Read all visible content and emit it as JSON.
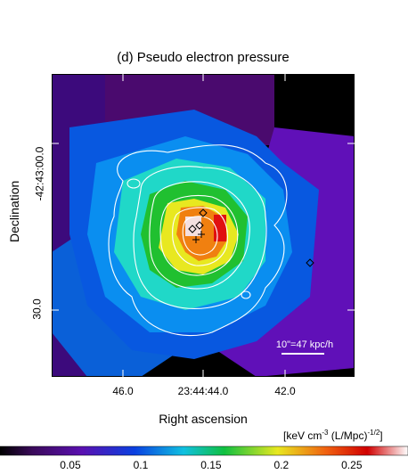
{
  "title": "(d) Pseudo electron pressure",
  "xlabel": "Right ascension",
  "ylabel": "Declination",
  "scale_bar_label": "10\"=47 kpc/h",
  "colorbar": {
    "unit_prefix": "[keV cm",
    "unit_exp1": "-3",
    "unit_mid": " (L/Mpc)",
    "unit_exp2": "-1/2",
    "unit_suffix": "]",
    "ticks": [
      "0.05",
      "0.1",
      "0.15",
      "0.2",
      "0.25"
    ],
    "range": [
      0.0,
      0.29
    ]
  },
  "chart_data": {
    "type": "heatmap",
    "title": "(d) Pseudo electron pressure",
    "xlabel": "Right ascension",
    "ylabel": "Declination",
    "x_ticks": [
      "46.0",
      "23:44:44.0",
      "42.0"
    ],
    "y_ticks": [
      "-42:43:00.0",
      "30.0"
    ],
    "colormap": "rainbow (black-purple-blue-cyan-green-yellow-red-white)",
    "colorbar_ticks": [
      0.05,
      0.1,
      0.15,
      0.2,
      0.25
    ],
    "regions": [
      {
        "name": "outer-nw",
        "value": 0.03
      },
      {
        "name": "outer-w",
        "value": 0.04
      },
      {
        "name": "outer-sw",
        "value": 0.07
      },
      {
        "name": "outer-se",
        "value": 0.05
      },
      {
        "name": "outer-ne",
        "value": 0.0
      },
      {
        "name": "ring-1",
        "value": 0.09
      },
      {
        "name": "ring-2",
        "value": 0.12
      },
      {
        "name": "ring-3",
        "value": 0.14
      },
      {
        "name": "ring-4",
        "value": 0.17
      },
      {
        "name": "ring-5",
        "value": 0.2
      },
      {
        "name": "core",
        "value": 0.26
      }
    ],
    "grid": false
  },
  "colors": {
    "frame": "#000000",
    "contours": "#ffffff",
    "background": "#ffffff"
  }
}
